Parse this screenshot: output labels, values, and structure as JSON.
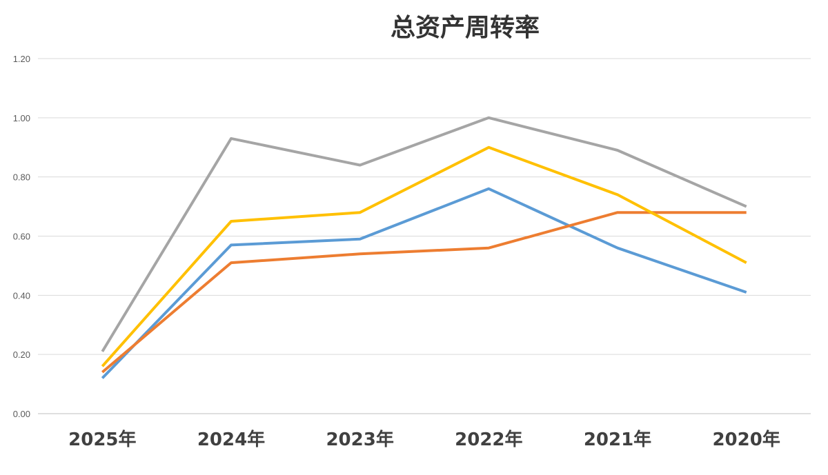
{
  "chart_data": {
    "type": "line",
    "title": "总资产周转率",
    "categories": [
      "2025年",
      "2024年",
      "2023年",
      "2022年",
      "2021年",
      "2020年"
    ],
    "ylim": [
      0,
      1.2
    ],
    "yticks": [
      "0.00",
      "0.20",
      "0.40",
      "0.60",
      "0.80",
      "1.00",
      "1.20"
    ],
    "grid": true,
    "legend": "none",
    "series": [
      {
        "color": "#5b9bd5",
        "values": [
          0.12,
          0.57,
          0.59,
          0.76,
          0.56,
          0.41
        ]
      },
      {
        "color": "#ed7d31",
        "values": [
          0.14,
          0.51,
          0.54,
          0.56,
          0.68,
          0.68
        ]
      },
      {
        "color": "#a5a5a5",
        "values": [
          0.21,
          0.93,
          0.84,
          1.0,
          0.89,
          0.7
        ]
      },
      {
        "color": "#ffc000",
        "values": [
          0.16,
          0.65,
          0.68,
          0.9,
          0.74,
          0.51
        ]
      }
    ]
  }
}
